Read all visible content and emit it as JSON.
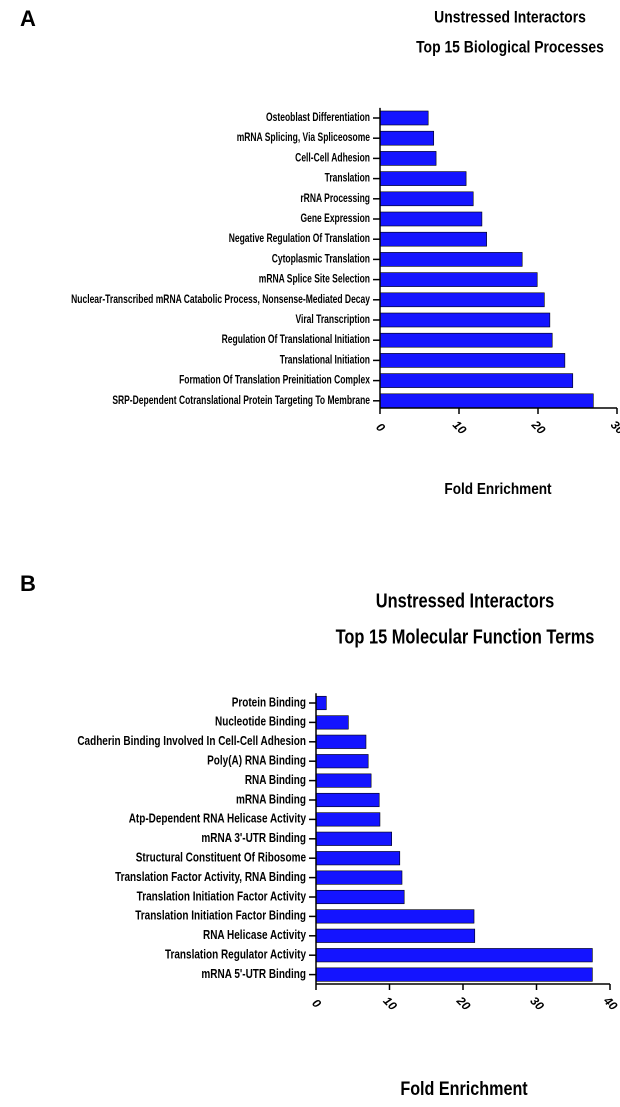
{
  "chart_data": [
    {
      "type": "barh",
      "panel": "A",
      "title": "Unstressed Interactors",
      "subtitle": "Top 15 Biological Processes",
      "xlabel": "Fold Enrichment",
      "color": "#1414ff",
      "categories": [
        "Osteoblast Differentiation",
        "mRNA Splicing, Via Spliceosome",
        "Cell-Cell Adhesion",
        "Translation",
        "rRNA Processing",
        "Gene Expression",
        "Negative Regulation Of Translation",
        "Cytoplasmic Translation",
        "mRNA Splice Site Selection",
        "Nuclear-Transcribed mRNA Catabolic Process, Nonsense-Mediated Decay",
        "Viral Transcription",
        "Regulation Of Translational Initiation",
        "Translational Initiation",
        "Formation Of Translation Preinitiation Complex",
        "SRP-Dependent Cotranslational Protein Targeting To Membrane"
      ],
      "values": [
        6.1,
        6.8,
        7.1,
        10.9,
        11.8,
        12.9,
        13.5,
        18.0,
        19.9,
        20.8,
        21.5,
        21.8,
        23.4,
        24.4,
        27.0
      ],
      "xlim": [
        0,
        30
      ],
      "xticks": [
        0,
        10,
        20,
        30
      ]
    },
    {
      "type": "barh",
      "panel": "B",
      "title": "Unstressed Interactors",
      "subtitle": "Top 15 Molecular Function Terms",
      "xlabel": "Fold Enrichment",
      "color": "#1414ff",
      "categories": [
        "Protein Binding",
        "Nucleotide Binding",
        "Cadherin Binding Involved In Cell-Cell Adhesion",
        "Poly(A) RNA Binding",
        "RNA Binding",
        "mRNA Binding",
        "Atp-Dependent RNA Helicase Activity",
        "mRNA 3'-UTR Binding",
        "Structural Constituent Of Ribosome",
        "Translation Factor Activity, RNA Binding",
        "Translation Initiation Factor Activity",
        "Translation Initiation Factor Binding",
        "RNA Helicase Activity",
        "Translation Regulator Activity",
        "mRNA 5'-UTR Binding"
      ],
      "values": [
        1.4,
        4.4,
        6.8,
        7.1,
        7.5,
        8.6,
        8.7,
        10.3,
        11.4,
        11.7,
        12.0,
        21.5,
        21.6,
        37.6,
        37.6
      ],
      "xlim": [
        0,
        40
      ],
      "xticks": [
        0,
        10,
        20,
        30,
        40
      ]
    }
  ]
}
